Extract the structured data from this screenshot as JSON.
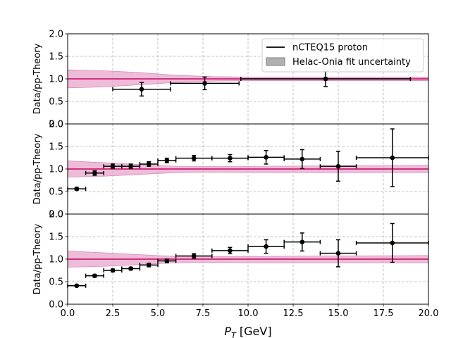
{
  "colors": {
    "band_fill": "#e8a6cc",
    "band_edge": "#d98cbc",
    "central_line": "#d0337e",
    "points": "#000000",
    "grid": "#b0b0b0",
    "legend_patch_fill": "#b0b0b0",
    "legend_patch_edge": "#808080"
  },
  "legend": {
    "placement": "upper-right (top panel)",
    "entries": [
      "nCTEQ15 proton",
      "Helac-Onia fit uncertainty"
    ]
  },
  "chart_data": [
    {
      "type": "scatter",
      "ylabel": "Data/pp-Theory",
      "xlim": [
        0,
        20
      ],
      "ylim": [
        0,
        2
      ],
      "xticks": [
        "0.0",
        "2.5",
        "5.0",
        "7.5",
        "10.0",
        "12.5",
        "15.0",
        "17.5",
        "20.0"
      ],
      "yticks": [
        "0.0",
        "0.5",
        "1.0",
        "1.5",
        "2.0"
      ],
      "grid": true,
      "show_xticklabels": false,
      "band": {
        "x": [
          0,
          2,
          4,
          6,
          8,
          10,
          20
        ],
        "lower": [
          0.8,
          0.82,
          0.87,
          0.92,
          0.95,
          0.96,
          0.96
        ],
        "upper": [
          1.2,
          1.18,
          1.14,
          1.08,
          1.05,
          1.04,
          1.04
        ]
      },
      "central": 1.0,
      "series": [
        {
          "x": [
            4.1,
            7.6,
            14.3
          ],
          "x_err": [
            [
              1.6,
              1.6
            ],
            [
              1.9,
              1.9
            ],
            [
              4.7,
              4.7
            ]
          ],
          "y": [
            0.77,
            0.9,
            1.0
          ],
          "y_err": [
            [
              0.15,
              0.15
            ],
            [
              0.14,
              0.14
            ],
            [
              0.17,
              0.17
            ]
          ]
        }
      ]
    },
    {
      "type": "scatter",
      "ylabel": "Data/pp-Theory",
      "xlim": [
        0,
        20
      ],
      "ylim": [
        0,
        2
      ],
      "xticks": [
        "0.0",
        "2.5",
        "5.0",
        "7.5",
        "10.0",
        "12.5",
        "15.0",
        "17.5",
        "20.0"
      ],
      "yticks": [
        "0.0",
        "0.5",
        "1.0",
        "1.5",
        "2.0"
      ],
      "grid": true,
      "show_xticklabels": false,
      "band": {
        "x": [
          0,
          2,
          4,
          6,
          8,
          10,
          20
        ],
        "lower": [
          0.82,
          0.84,
          0.88,
          0.92,
          0.93,
          0.92,
          0.92
        ],
        "upper": [
          1.18,
          1.14,
          1.1,
          1.06,
          1.06,
          1.06,
          1.08
        ]
      },
      "central": 1.0,
      "series": [
        {
          "x": [
            0.5,
            1.5,
            2.5,
            3.5,
            4.5,
            5.5,
            7,
            9,
            11,
            13,
            15,
            18
          ],
          "x_err": [
            [
              0.5,
              0.5
            ],
            [
              0.5,
              0.5
            ],
            [
              0.5,
              0.5
            ],
            [
              0.5,
              0.5
            ],
            [
              0.5,
              0.5
            ],
            [
              0.5,
              0.5
            ],
            [
              1,
              1
            ],
            [
              1,
              1
            ],
            [
              1,
              1
            ],
            [
              1,
              1
            ],
            [
              1,
              1
            ],
            [
              2,
              2
            ]
          ],
          "y": [
            0.56,
            0.91,
            1.06,
            1.06,
            1.11,
            1.19,
            1.24,
            1.24,
            1.26,
            1.22,
            1.06,
            1.25
          ],
          "y_err": [
            [
              0.03,
              0.03
            ],
            [
              0.05,
              0.05
            ],
            [
              0.05,
              0.05
            ],
            [
              0.05,
              0.05
            ],
            [
              0.05,
              0.05
            ],
            [
              0.05,
              0.05
            ],
            [
              0.06,
              0.06
            ],
            [
              0.08,
              0.08
            ],
            [
              0.15,
              0.15
            ],
            [
              0.21,
              0.21
            ],
            [
              0.33,
              0.33
            ],
            [
              0.64,
              0.64
            ]
          ]
        }
      ]
    },
    {
      "type": "scatter",
      "ylabel": "Data/pp-Theory",
      "xlabel_math": "P",
      "xlabel_sub": "T",
      "xlabel_unit": " [GeV]",
      "xlim": [
        0,
        20
      ],
      "ylim": [
        0,
        2
      ],
      "xticks": [
        "0.0",
        "2.5",
        "5.0",
        "7.5",
        "10.0",
        "12.5",
        "15.0",
        "17.5",
        "20.0"
      ],
      "yticks": [
        "0.0",
        "0.5",
        "1.0",
        "1.5",
        "2.0"
      ],
      "grid": true,
      "show_xticklabels": true,
      "band": {
        "x": [
          0,
          2,
          4,
          6,
          8,
          10,
          20
        ],
        "lower": [
          0.82,
          0.84,
          0.88,
          0.92,
          0.93,
          0.92,
          0.92
        ],
        "upper": [
          1.18,
          1.14,
          1.1,
          1.06,
          1.06,
          1.06,
          1.08
        ]
      },
      "central": 1.0,
      "series": [
        {
          "x": [
            0.5,
            1.5,
            2.5,
            3.5,
            4.5,
            5.5,
            7,
            9,
            11,
            13,
            15,
            18
          ],
          "x_err": [
            [
              0.5,
              0.5
            ],
            [
              0.5,
              0.5
            ],
            [
              0.5,
              0.5
            ],
            [
              0.5,
              0.5
            ],
            [
              0.5,
              0.5
            ],
            [
              0.5,
              0.5
            ],
            [
              1,
              1
            ],
            [
              1,
              1
            ],
            [
              1,
              1
            ],
            [
              1,
              1
            ],
            [
              1,
              1
            ],
            [
              2,
              2
            ]
          ],
          "y": [
            0.41,
            0.63,
            0.75,
            0.79,
            0.87,
            0.96,
            1.07,
            1.19,
            1.28,
            1.38,
            1.13,
            1.36
          ],
          "y_err": [
            [
              0.02,
              0.02
            ],
            [
              0.03,
              0.03
            ],
            [
              0.03,
              0.03
            ],
            [
              0.03,
              0.03
            ],
            [
              0.04,
              0.04
            ],
            [
              0.04,
              0.04
            ],
            [
              0.05,
              0.05
            ],
            [
              0.07,
              0.07
            ],
            [
              0.15,
              0.15
            ],
            [
              0.2,
              0.2
            ],
            [
              0.3,
              0.3
            ],
            [
              0.43,
              0.43
            ]
          ]
        }
      ]
    }
  ]
}
